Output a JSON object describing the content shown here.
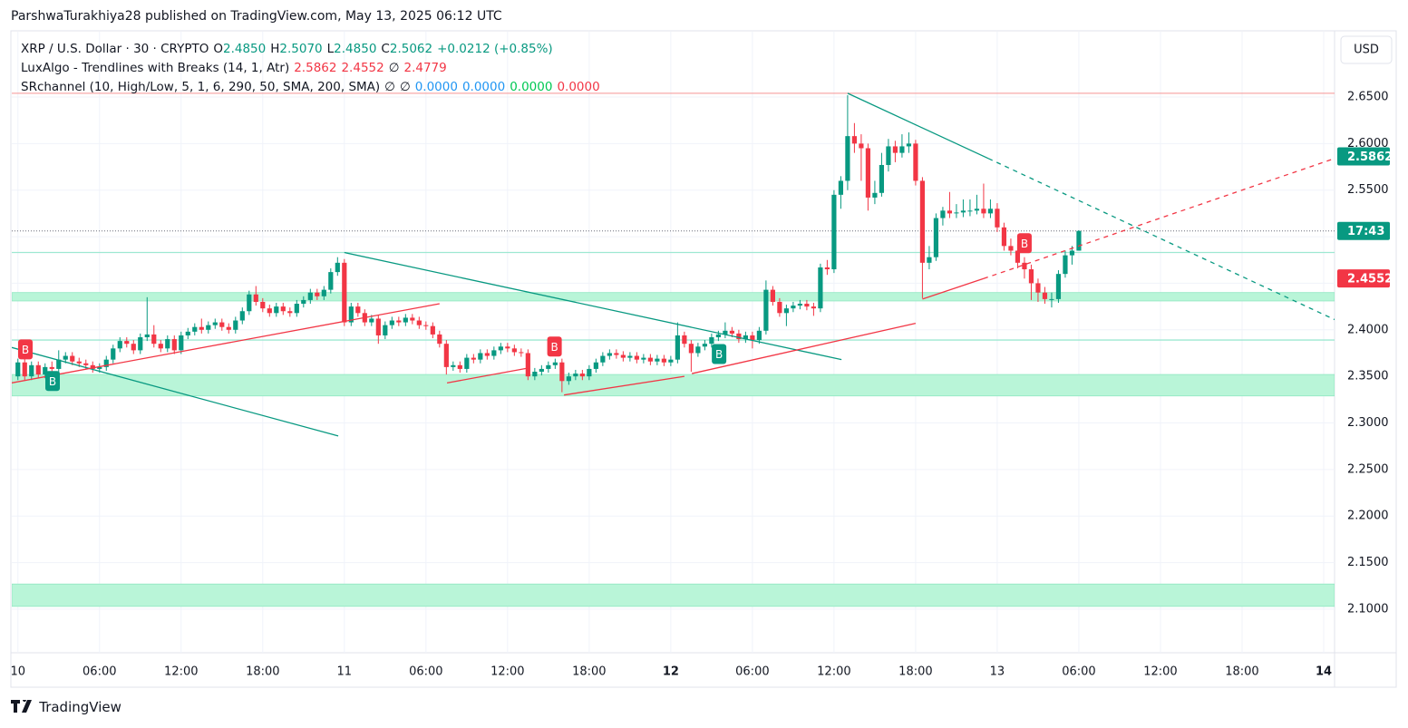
{
  "header": {
    "text": "ParshwaTurakhiya28 published on TradingView.com, May 13, 2025 06:12 UTC"
  },
  "legend": {
    "lines": [
      [
        {
          "text": "XRP / U.S. Dollar · 30 · CRYPTO",
          "color": "#131722"
        },
        {
          "text": "O",
          "color": "#131722"
        },
        {
          "text": "2.4850",
          "color": "#089981"
        },
        {
          "text": "H",
          "color": "#131722"
        },
        {
          "text": "2.5070",
          "color": "#089981"
        },
        {
          "text": "L",
          "color": "#131722"
        },
        {
          "text": "2.4850",
          "color": "#089981"
        },
        {
          "text": "C",
          "color": "#131722"
        },
        {
          "text": "2.5062",
          "color": "#089981"
        },
        {
          "text": "+0.0212 (+0.85%)",
          "color": "#089981"
        }
      ],
      [
        {
          "text": "LuxAlgo - Trendlines with Breaks (14, 1, Atr)",
          "color": "#131722"
        },
        {
          "text": "2.5862",
          "color": "#f23645"
        },
        {
          "text": "2.4552",
          "color": "#f23645"
        },
        {
          "text": "∅",
          "color": "#131722"
        },
        {
          "text": "2.4779",
          "color": "#f23645"
        }
      ],
      [
        {
          "text": "SRchannel (10, High/Low, 5, 1, 6, 290, 50, SMA, 200, SMA)",
          "color": "#131722"
        },
        {
          "text": "∅",
          "color": "#131722"
        },
        {
          "text": "∅",
          "color": "#131722"
        },
        {
          "text": "0.0000",
          "color": "#2196f3"
        },
        {
          "text": "0.0000",
          "color": "#2196f3"
        },
        {
          "text": "0.0000",
          "color": "#00c853"
        },
        {
          "text": "0.0000",
          "color": "#f23645"
        }
      ]
    ]
  },
  "chart_data": {
    "type": "candlestick",
    "up_color": "#089981",
    "down_color": "#f23645",
    "currency": "USD",
    "candles": [
      [
        2.35,
        2.369,
        2.346,
        2.365
      ],
      [
        2.365,
        2.369,
        2.346,
        2.35
      ],
      [
        2.35,
        2.366,
        2.346,
        2.362
      ],
      [
        2.362,
        2.366,
        2.348,
        2.352
      ],
      [
        2.352,
        2.364,
        2.348,
        2.36
      ],
      [
        2.36,
        2.366,
        2.354,
        2.358
      ],
      [
        2.358,
        2.378,
        2.354,
        2.368
      ],
      [
        2.368,
        2.376,
        2.364,
        2.372
      ],
      [
        2.372,
        2.376,
        2.362,
        2.366
      ],
      [
        2.366,
        2.37,
        2.36,
        2.364
      ],
      [
        2.364,
        2.368,
        2.358,
        2.362
      ],
      [
        2.362,
        2.366,
        2.354,
        2.358
      ],
      [
        2.358,
        2.364,
        2.354,
        2.36
      ],
      [
        2.36,
        2.372,
        2.356,
        2.368
      ],
      [
        2.368,
        2.384,
        2.364,
        2.38
      ],
      [
        2.38,
        2.392,
        2.376,
        2.388
      ],
      [
        2.388,
        2.392,
        2.381,
        2.385
      ],
      [
        2.385,
        2.389,
        2.374,
        2.378
      ],
      [
        2.378,
        2.396,
        2.374,
        2.392
      ],
      [
        2.392,
        2.435,
        2.388,
        2.395
      ],
      [
        2.395,
        2.405,
        2.381,
        2.385
      ],
      [
        2.385,
        2.389,
        2.376,
        2.38
      ],
      [
        2.38,
        2.394,
        2.376,
        2.39
      ],
      [
        2.39,
        2.394,
        2.374,
        2.378
      ],
      [
        2.378,
        2.398,
        2.374,
        2.394
      ],
      [
        2.394,
        2.402,
        2.39,
        2.398
      ],
      [
        2.398,
        2.407,
        2.394,
        2.403
      ],
      [
        2.403,
        2.412,
        2.396,
        2.4
      ],
      [
        2.4,
        2.409,
        2.396,
        2.405
      ],
      [
        2.405,
        2.412,
        2.401,
        2.408
      ],
      [
        2.408,
        2.412,
        2.399,
        2.403
      ],
      [
        2.403,
        2.407,
        2.396,
        2.4
      ],
      [
        2.4,
        2.414,
        2.396,
        2.41
      ],
      [
        2.41,
        2.424,
        2.406,
        2.42
      ],
      [
        2.42,
        2.442,
        2.416,
        2.438
      ],
      [
        2.438,
        2.447,
        2.426,
        2.43
      ],
      [
        2.43,
        2.434,
        2.419,
        2.423
      ],
      [
        2.423,
        2.427,
        2.414,
        2.418
      ],
      [
        2.418,
        2.429,
        2.414,
        2.425
      ],
      [
        2.425,
        2.429,
        2.416,
        2.42
      ],
      [
        2.42,
        2.424,
        2.414,
        2.418
      ],
      [
        2.418,
        2.432,
        2.414,
        2.428
      ],
      [
        2.428,
        2.436,
        2.424,
        2.432
      ],
      [
        2.432,
        2.444,
        2.428,
        2.44
      ],
      [
        2.44,
        2.444,
        2.432,
        2.436
      ],
      [
        2.436,
        2.447,
        2.432,
        2.443
      ],
      [
        2.443,
        2.466,
        2.439,
        2.462
      ],
      [
        2.462,
        2.478,
        2.458,
        2.472
      ],
      [
        2.472,
        2.476,
        2.404,
        2.408
      ],
      [
        2.408,
        2.429,
        2.404,
        2.425
      ],
      [
        2.425,
        2.429,
        2.414,
        2.418
      ],
      [
        2.418,
        2.422,
        2.404,
        2.408
      ],
      [
        2.408,
        2.416,
        2.404,
        2.412
      ],
      [
        2.412,
        2.416,
        2.385,
        2.394
      ],
      [
        2.394,
        2.409,
        2.39,
        2.405
      ],
      [
        2.405,
        2.414,
        2.401,
        2.41
      ],
      [
        2.41,
        2.414,
        2.404,
        2.408
      ],
      [
        2.408,
        2.417,
        2.404,
        2.413
      ],
      [
        2.413,
        2.417,
        2.406,
        2.41
      ],
      [
        2.41,
        2.414,
        2.401,
        2.405
      ],
      [
        2.405,
        2.409,
        2.4,
        2.404
      ],
      [
        2.404,
        2.408,
        2.391,
        2.395
      ],
      [
        2.395,
        2.399,
        2.381,
        2.385
      ],
      [
        2.385,
        2.389,
        2.352,
        2.36
      ],
      [
        2.36,
        2.366,
        2.356,
        2.362
      ],
      [
        2.362,
        2.366,
        2.354,
        2.358
      ],
      [
        2.358,
        2.374,
        2.354,
        2.37
      ],
      [
        2.37,
        2.374,
        2.364,
        2.368
      ],
      [
        2.368,
        2.379,
        2.364,
        2.375
      ],
      [
        2.375,
        2.379,
        2.368,
        2.372
      ],
      [
        2.372,
        2.382,
        2.368,
        2.378
      ],
      [
        2.378,
        2.386,
        2.374,
        2.382
      ],
      [
        2.382,
        2.386,
        2.376,
        2.38
      ],
      [
        2.38,
        2.384,
        2.372,
        2.376
      ],
      [
        2.376,
        2.38,
        2.371,
        2.375
      ],
      [
        2.375,
        2.379,
        2.346,
        2.35
      ],
      [
        2.35,
        2.359,
        2.346,
        2.355
      ],
      [
        2.355,
        2.362,
        2.351,
        2.358
      ],
      [
        2.358,
        2.366,
        2.354,
        2.362
      ],
      [
        2.362,
        2.369,
        2.358,
        2.365
      ],
      [
        2.365,
        2.369,
        2.333,
        2.345
      ],
      [
        2.345,
        2.354,
        2.341,
        2.35
      ],
      [
        2.35,
        2.357,
        2.346,
        2.353
      ],
      [
        2.353,
        2.357,
        2.346,
        2.35
      ],
      [
        2.35,
        2.362,
        2.346,
        2.358
      ],
      [
        2.358,
        2.369,
        2.354,
        2.365
      ],
      [
        2.365,
        2.376,
        2.361,
        2.372
      ],
      [
        2.372,
        2.379,
        2.368,
        2.375
      ],
      [
        2.375,
        2.379,
        2.369,
        2.373
      ],
      [
        2.373,
        2.377,
        2.366,
        2.37
      ],
      [
        2.37,
        2.376,
        2.366,
        2.372
      ],
      [
        2.372,
        2.376,
        2.364,
        2.368
      ],
      [
        2.368,
        2.374,
        2.364,
        2.37
      ],
      [
        2.37,
        2.374,
        2.362,
        2.366
      ],
      [
        2.366,
        2.373,
        2.362,
        2.369
      ],
      [
        2.369,
        2.373,
        2.361,
        2.365
      ],
      [
        2.365,
        2.372,
        2.361,
        2.368
      ],
      [
        2.368,
        2.408,
        2.364,
        2.394
      ],
      [
        2.394,
        2.398,
        2.381,
        2.385
      ],
      [
        2.385,
        2.389,
        2.355,
        2.375
      ],
      [
        2.375,
        2.386,
        2.371,
        2.382
      ],
      [
        2.382,
        2.389,
        2.378,
        2.385
      ],
      [
        2.385,
        2.396,
        2.381,
        2.392
      ],
      [
        2.392,
        2.399,
        2.388,
        2.395
      ],
      [
        2.395,
        2.408,
        2.391,
        2.399
      ],
      [
        2.399,
        2.403,
        2.392,
        2.396
      ],
      [
        2.396,
        2.4,
        2.386,
        2.39
      ],
      [
        2.39,
        2.398,
        2.386,
        2.394
      ],
      [
        2.394,
        2.398,
        2.38,
        2.389
      ],
      [
        2.389,
        2.403,
        2.385,
        2.399
      ],
      [
        2.399,
        2.453,
        2.395,
        2.443
      ],
      [
        2.443,
        2.447,
        2.426,
        2.43
      ],
      [
        2.43,
        2.434,
        2.414,
        2.418
      ],
      [
        2.418,
        2.427,
        2.404,
        2.423
      ],
      [
        2.423,
        2.43,
        2.419,
        2.426
      ],
      [
        2.426,
        2.432,
        2.422,
        2.428
      ],
      [
        2.428,
        2.432,
        2.421,
        2.425
      ],
      [
        2.425,
        2.429,
        2.415,
        2.423
      ],
      [
        2.423,
        2.471,
        2.419,
        2.467
      ],
      [
        2.467,
        2.475,
        2.459,
        2.465
      ],
      [
        2.465,
        2.55,
        2.461,
        2.545
      ],
      [
        2.545,
        2.565,
        2.53,
        2.56
      ],
      [
        2.56,
        2.652,
        2.55,
        2.608
      ],
      [
        2.608,
        2.622,
        2.59,
        2.6
      ],
      [
        2.6,
        2.61,
        2.56,
        2.595
      ],
      [
        2.595,
        2.6,
        2.528,
        2.542
      ],
      [
        2.542,
        2.56,
        2.535,
        2.547
      ],
      [
        2.547,
        2.59,
        2.543,
        2.577
      ],
      [
        2.577,
        2.605,
        2.57,
        2.597
      ],
      [
        2.597,
        2.603,
        2.58,
        2.59
      ],
      [
        2.59,
        2.61,
        2.585,
        2.597
      ],
      [
        2.597,
        2.612,
        2.59,
        2.6
      ],
      [
        2.6,
        2.604,
        2.555,
        2.56
      ],
      [
        2.56,
        2.564,
        2.434,
        2.472
      ],
      [
        2.472,
        2.49,
        2.465,
        2.478
      ],
      [
        2.478,
        2.525,
        2.474,
        2.52
      ],
      [
        2.52,
        2.532,
        2.512,
        2.528
      ],
      [
        2.528,
        2.548,
        2.52,
        2.525
      ],
      [
        2.525,
        2.535,
        2.52,
        2.526
      ],
      [
        2.526,
        2.54,
        2.521,
        2.528
      ],
      [
        2.528,
        2.54,
        2.522,
        2.528
      ],
      [
        2.528,
        2.545,
        2.524,
        2.53
      ],
      [
        2.53,
        2.557,
        2.52,
        2.525
      ],
      [
        2.525,
        2.54,
        2.52,
        2.53
      ],
      [
        2.53,
        2.536,
        2.505,
        2.51
      ],
      [
        2.51,
        2.515,
        2.485,
        2.49
      ],
      [
        2.49,
        2.498,
        2.48,
        2.485
      ],
      [
        2.485,
        2.492,
        2.466,
        2.472
      ],
      [
        2.472,
        2.478,
        2.455,
        2.465
      ],
      [
        2.465,
        2.47,
        2.432,
        2.45
      ],
      [
        2.45,
        2.455,
        2.43,
        2.44
      ],
      [
        2.44,
        2.446,
        2.428,
        2.433
      ],
      [
        2.433,
        2.44,
        2.424,
        2.433
      ],
      [
        2.433,
        2.464,
        2.429,
        2.46
      ],
      [
        2.46,
        2.485,
        2.456,
        2.48
      ],
      [
        2.48,
        2.49,
        2.47,
        2.485
      ],
      [
        2.485,
        2.507,
        2.485,
        2.5062
      ]
    ],
    "xlim": [
      -0.9,
      193.6
    ],
    "xticks": [
      {
        "value": 0,
        "label": "10"
      },
      {
        "value": 12,
        "label": "06:00"
      },
      {
        "value": 24,
        "label": "12:00"
      },
      {
        "value": 36,
        "label": "18:00"
      },
      {
        "value": 48,
        "label": "11"
      },
      {
        "value": 60,
        "label": "06:00"
      },
      {
        "value": 72,
        "label": "12:00"
      },
      {
        "value": 84,
        "label": "18:00"
      },
      {
        "value": 96,
        "label": "12"
      },
      {
        "value": 108,
        "label": "06:00"
      },
      {
        "value": 120,
        "label": "12:00"
      },
      {
        "value": 132,
        "label": "18:00"
      },
      {
        "value": 144,
        "label": "13"
      },
      {
        "value": 156,
        "label": "06:00"
      },
      {
        "value": 168,
        "label": "12:00"
      },
      {
        "value": 180,
        "label": "18:00"
      },
      {
        "value": 192,
        "label": "14"
      }
    ],
    "ylim": [
      2.0532,
      2.7201
    ],
    "yticks": [
      {
        "value": 2.1,
        "label": "2.1000"
      },
      {
        "value": 2.15,
        "label": "2.1500"
      },
      {
        "value": 2.2,
        "label": "2.2000"
      },
      {
        "value": 2.25,
        "label": "2.2500"
      },
      {
        "value": 2.3,
        "label": "2.3000"
      },
      {
        "value": 2.35,
        "label": "2.3500"
      },
      {
        "value": 2.4,
        "label": "2.4000"
      },
      {
        "value": 2.45,
        "label": "2.4500"
      },
      {
        "value": 2.5,
        "label": "2.5000"
      },
      {
        "value": 2.55,
        "label": "2.5500"
      },
      {
        "value": 2.6,
        "label": "2.6000"
      },
      {
        "value": 2.65,
        "label": "2.6500"
      }
    ],
    "grid": true,
    "zones": [
      [
        2.352,
        2.329
      ],
      [
        2.44,
        2.431
      ],
      [
        2.127,
        2.103
      ]
    ],
    "zone_color": "#b9f5d8",
    "levels": [
      {
        "value": 2.654,
        "color": "#f7a8a8"
      },
      {
        "value": 2.483,
        "color": "#9ee8d2"
      },
      {
        "value": 2.389,
        "color": "#9ee8d2"
      }
    ],
    "trendlines": [
      {
        "color": "#089981",
        "dashed": false,
        "points": [
          [
            -0.9,
            2.381
          ],
          [
            47.1,
            2.286
          ]
        ]
      },
      {
        "color": "#089981",
        "dashed": false,
        "points": [
          [
            48,
            2.483
          ],
          [
            121.1,
            2.368
          ]
        ]
      },
      {
        "color": "#089981",
        "dashed": false,
        "points": [
          [
            122,
            2.654
          ],
          [
            142.7,
            2.584
          ]
        ]
      },
      {
        "color": "#089981",
        "dashed": true,
        "points": [
          [
            142.7,
            2.584
          ],
          [
            193.6,
            2.411
          ]
        ]
      },
      {
        "color": "#f23645",
        "dashed": false,
        "points": [
          [
            -0.9,
            2.343
          ],
          [
            62,
            2.428
          ]
        ]
      },
      {
        "color": "#f23645",
        "dashed": false,
        "points": [
          [
            63.1,
            2.343
          ],
          [
            75.1,
            2.359
          ]
        ]
      },
      {
        "color": "#f23645",
        "dashed": false,
        "points": [
          [
            80.3,
            2.33
          ],
          [
            98,
            2.35
          ]
        ]
      },
      {
        "color": "#f23645",
        "dashed": false,
        "points": [
          [
            99.1,
            2.353
          ],
          [
            132,
            2.407
          ]
        ]
      },
      {
        "color": "#f23645",
        "dashed": false,
        "points": [
          [
            133,
            2.433
          ],
          [
            142,
            2.455
          ]
        ]
      },
      {
        "color": "#f23645",
        "dashed": true,
        "points": [
          [
            142,
            2.455
          ],
          [
            193.6,
            2.584
          ]
        ]
      }
    ],
    "breaks": [
      {
        "label": "B",
        "x": 1.1,
        "y": 2.379,
        "color": "#f23645"
      },
      {
        "label": "B",
        "x": 5.1,
        "y": 2.345,
        "color": "#089981"
      },
      {
        "label": "B",
        "x": 78.9,
        "y": 2.382,
        "color": "#f23645"
      },
      {
        "label": "B",
        "x": 103.1,
        "y": 2.374,
        "color": "#089981"
      },
      {
        "label": "B",
        "x": 148,
        "y": 2.493,
        "color": "#f23645"
      }
    ],
    "price_labels": [
      {
        "value": 2.5862,
        "label": "2.5862",
        "color": "#089981"
      },
      {
        "value": 2.5062,
        "label": "17:43",
        "color": "#089981"
      },
      {
        "value": 2.4552,
        "label": "2.4552",
        "color": "#f23645"
      }
    ]
  },
  "footer": {
    "brand": "TradingView"
  }
}
